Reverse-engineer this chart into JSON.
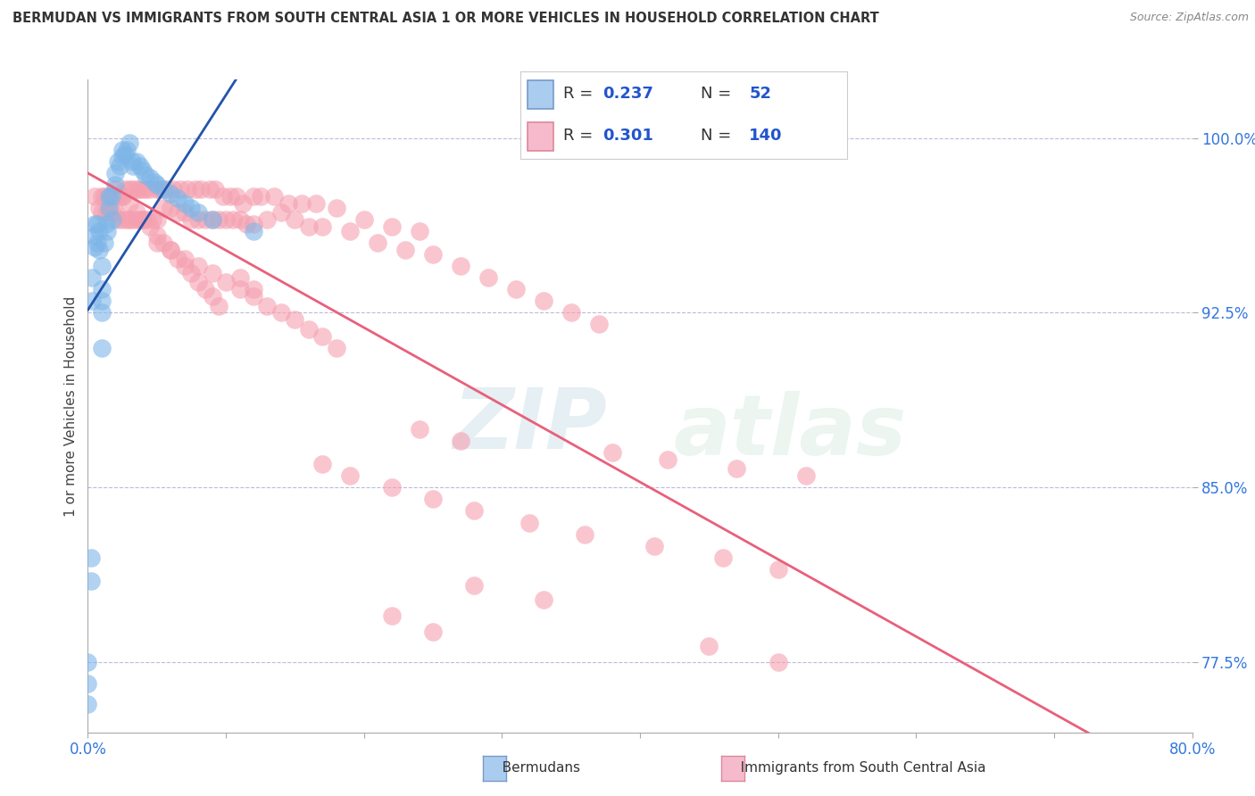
{
  "title": "BERMUDAN VS IMMIGRANTS FROM SOUTH CENTRAL ASIA 1 OR MORE VEHICLES IN HOUSEHOLD CORRELATION CHART",
  "source": "Source: ZipAtlas.com",
  "ylabel": "1 or more Vehicles in Household",
  "xlim": [
    0.0,
    0.8
  ],
  "ylim": [
    0.745,
    1.025
  ],
  "blue_R": 0.237,
  "blue_N": 52,
  "pink_R": 0.301,
  "pink_N": 140,
  "blue_color": "#7EB6E8",
  "pink_color": "#F5A0B0",
  "blue_line_color": "#2255AA",
  "pink_line_color": "#E8607A",
  "legend_blue_label": "Bermudans",
  "legend_pink_label": "Immigrants from South Central Asia",
  "watermark_zip": "ZIP",
  "watermark_atlas": "atlas",
  "y_ticks": [
    0.775,
    0.85,
    0.925,
    1.0
  ],
  "y_tick_labels": [
    "77.5%",
    "85.0%",
    "92.5%",
    "100.0%"
  ],
  "x_ticks": [
    0.0,
    0.1,
    0.2,
    0.3,
    0.4,
    0.5,
    0.6,
    0.7,
    0.8
  ],
  "x_tick_labels": [
    "0.0%",
    "",
    "",
    "",
    "",
    "",
    "",
    "",
    "80.0%"
  ],
  "blue_scatter_x": [
    0.0,
    0.0,
    0.0,
    0.002,
    0.002,
    0.003,
    0.003,
    0.005,
    0.005,
    0.005,
    0.007,
    0.007,
    0.008,
    0.008,
    0.01,
    0.01,
    0.01,
    0.01,
    0.012,
    0.013,
    0.014,
    0.015,
    0.015,
    0.017,
    0.018,
    0.02,
    0.02,
    0.022,
    0.023,
    0.025,
    0.025,
    0.027,
    0.028,
    0.03,
    0.032,
    0.033,
    0.035,
    0.038,
    0.04,
    0.042,
    0.045,
    0.048,
    0.05,
    0.055,
    0.06,
    0.065,
    0.07,
    0.075,
    0.08,
    0.09,
    0.01,
    0.12
  ],
  "blue_scatter_y": [
    0.757,
    0.766,
    0.775,
    0.81,
    0.82,
    0.93,
    0.94,
    0.953,
    0.958,
    0.963,
    0.955,
    0.963,
    0.952,
    0.96,
    0.925,
    0.93,
    0.935,
    0.945,
    0.955,
    0.963,
    0.96,
    0.97,
    0.975,
    0.975,
    0.965,
    0.98,
    0.985,
    0.99,
    0.988,
    0.992,
    0.995,
    0.993,
    0.995,
    0.998,
    0.99,
    0.988,
    0.99,
    0.988,
    0.986,
    0.984,
    0.983,
    0.981,
    0.98,
    0.978,
    0.976,
    0.974,
    0.972,
    0.97,
    0.968,
    0.965,
    0.91,
    0.96
  ],
  "pink_scatter_x": [
    0.005,
    0.008,
    0.01,
    0.01,
    0.012,
    0.013,
    0.015,
    0.015,
    0.017,
    0.018,
    0.02,
    0.02,
    0.022,
    0.022,
    0.025,
    0.025,
    0.027,
    0.028,
    0.03,
    0.03,
    0.032,
    0.032,
    0.035,
    0.035,
    0.037,
    0.038,
    0.04,
    0.04,
    0.042,
    0.043,
    0.045,
    0.047,
    0.05,
    0.05,
    0.052,
    0.055,
    0.057,
    0.06,
    0.062,
    0.065,
    0.067,
    0.07,
    0.072,
    0.075,
    0.078,
    0.08,
    0.082,
    0.085,
    0.088,
    0.09,
    0.092,
    0.095,
    0.098,
    0.1,
    0.103,
    0.105,
    0.108,
    0.11,
    0.112,
    0.115,
    0.12,
    0.12,
    0.125,
    0.13,
    0.135,
    0.14,
    0.145,
    0.15,
    0.155,
    0.16,
    0.165,
    0.17,
    0.18,
    0.19,
    0.2,
    0.21,
    0.22,
    0.23,
    0.24,
    0.25,
    0.27,
    0.29,
    0.31,
    0.33,
    0.35,
    0.37,
    0.05,
    0.06,
    0.07,
    0.08,
    0.09,
    0.1,
    0.11,
    0.12,
    0.13,
    0.14,
    0.15,
    0.16,
    0.17,
    0.18,
    0.02,
    0.025,
    0.03,
    0.035,
    0.04,
    0.045,
    0.05,
    0.055,
    0.06,
    0.065,
    0.07,
    0.075,
    0.08,
    0.085,
    0.09,
    0.095,
    0.11,
    0.12,
    0.24,
    0.27,
    0.38,
    0.42,
    0.47,
    0.52,
    0.17,
    0.19,
    0.22,
    0.25,
    0.28,
    0.32,
    0.36,
    0.41,
    0.46,
    0.5,
    0.28,
    0.33,
    0.22,
    0.25,
    0.45,
    0.5
  ],
  "pink_scatter_y": [
    0.975,
    0.97,
    0.975,
    0.968,
    0.975,
    0.968,
    0.975,
    0.968,
    0.975,
    0.968,
    0.975,
    0.968,
    0.975,
    0.965,
    0.975,
    0.965,
    0.978,
    0.965,
    0.978,
    0.965,
    0.978,
    0.965,
    0.978,
    0.965,
    0.978,
    0.965,
    0.978,
    0.965,
    0.978,
    0.965,
    0.978,
    0.965,
    0.978,
    0.965,
    0.978,
    0.97,
    0.978,
    0.97,
    0.978,
    0.968,
    0.978,
    0.968,
    0.978,
    0.965,
    0.978,
    0.965,
    0.978,
    0.965,
    0.978,
    0.965,
    0.978,
    0.965,
    0.975,
    0.965,
    0.975,
    0.965,
    0.975,
    0.965,
    0.972,
    0.963,
    0.975,
    0.963,
    0.975,
    0.965,
    0.975,
    0.968,
    0.972,
    0.965,
    0.972,
    0.962,
    0.972,
    0.962,
    0.97,
    0.96,
    0.965,
    0.955,
    0.962,
    0.952,
    0.96,
    0.95,
    0.945,
    0.94,
    0.935,
    0.93,
    0.925,
    0.92,
    0.955,
    0.952,
    0.948,
    0.945,
    0.942,
    0.938,
    0.935,
    0.932,
    0.928,
    0.925,
    0.922,
    0.918,
    0.915,
    0.91,
    0.978,
    0.975,
    0.972,
    0.968,
    0.965,
    0.962,
    0.958,
    0.955,
    0.952,
    0.948,
    0.945,
    0.942,
    0.938,
    0.935,
    0.932,
    0.928,
    0.94,
    0.935,
    0.875,
    0.87,
    0.865,
    0.862,
    0.858,
    0.855,
    0.86,
    0.855,
    0.85,
    0.845,
    0.84,
    0.835,
    0.83,
    0.825,
    0.82,
    0.815,
    0.808,
    0.802,
    0.795,
    0.788,
    0.782,
    0.775
  ]
}
